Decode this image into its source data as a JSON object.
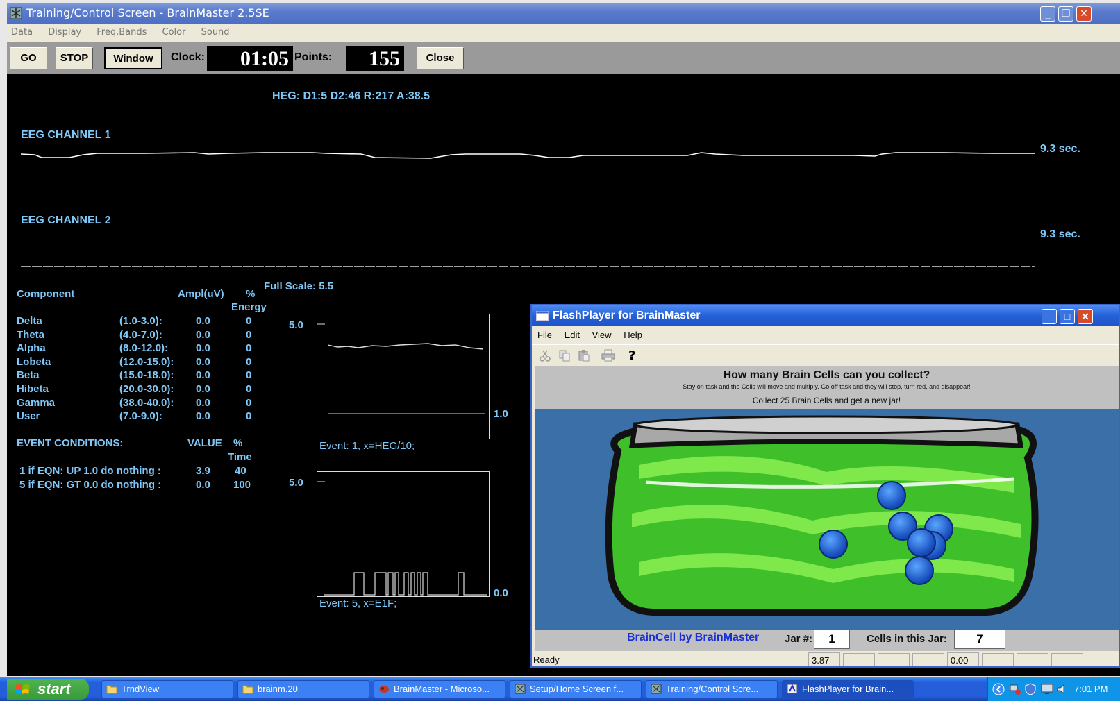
{
  "window": {
    "title": "Training/Control Screen - BrainMaster 2.5SE",
    "menu": [
      "Data",
      "Display",
      "Freq.Bands",
      "Color",
      "Sound"
    ]
  },
  "toolbar": {
    "go_label": "GO",
    "stop_label": "STOP",
    "window_label": "Window",
    "clock_label": "Clock:",
    "clock_value": "01:05",
    "points_label": "Points:",
    "points_value": "155",
    "close_label": "Close"
  },
  "heg_readout": "HEG: D1:5 D2:46 R:217 A:38.5",
  "channels": [
    {
      "label": "EEG CHANNEL 1",
      "duration": "9.3 sec."
    },
    {
      "label": "EEG CHANNEL 2",
      "duration": "9.3 sec."
    }
  ],
  "full_scale": "Full Scale: 5.5",
  "components": {
    "header_component": "Component",
    "header_ampl": "Ampl(uV)",
    "header_pct": "%",
    "header_energy": "Energy",
    "rows": [
      {
        "name": "Delta",
        "range": "(1.0-3.0):",
        "ampl": "0.0",
        "pct": "0"
      },
      {
        "name": "Theta",
        "range": "(4.0-7.0):",
        "ampl": "0.0",
        "pct": "0"
      },
      {
        "name": "Alpha",
        "range": "(8.0-12.0):",
        "ampl": "0.0",
        "pct": "0"
      },
      {
        "name": "Lobeta",
        "range": "(12.0-15.0):",
        "ampl": "0.0",
        "pct": "0"
      },
      {
        "name": "Beta",
        "range": "(15.0-18.0):",
        "ampl": "0.0",
        "pct": "0"
      },
      {
        "name": "Hibeta",
        "range": "(20.0-30.0):",
        "ampl": "0.0",
        "pct": "0"
      },
      {
        "name": "Gamma",
        "range": "(38.0-40.0):",
        "ampl": "0.0",
        "pct": "0"
      },
      {
        "name": "User",
        "range": "(7.0-9.0):",
        "ampl": "0.0",
        "pct": "0"
      }
    ]
  },
  "events": {
    "header": "EVENT CONDITIONS:",
    "header_value": "VALUE",
    "header_pct": "%",
    "header_time": "Time",
    "rows": [
      {
        "condition": "1 if EQN: UP 1.0 do nothing :",
        "value": "3.9",
        "time": "40"
      },
      {
        "condition": "5 if EQN: GT 0.0 do nothing :",
        "value": "0.0",
        "time": "100"
      }
    ]
  },
  "graph1": {
    "top": "5.0",
    "threshold": "1.0",
    "caption": "Event: 1, x=HEG/10;"
  },
  "graph2": {
    "top": "5.0",
    "bottom": "0.0",
    "caption": "Event: 5, x=E1F;"
  },
  "flash": {
    "title": "FlashPlayer for BrainMaster",
    "menu": [
      "File",
      "Edit",
      "View",
      "Help"
    ],
    "heading": "How many Brain Cells can you  collect?",
    "subheading": "Stay on task and the Cells will move and multiply.  Go off task and they will stop, turn red, and disappear!",
    "goal": "Collect 25 Brain Cells and get a new jar!",
    "brand": "BrainCell by BrainMaster",
    "jar_label": "Jar #:",
    "jar_value": "1",
    "cells_label": "Cells in this Jar:",
    "cells_value": "7",
    "status": "Ready",
    "status_v1": "3.87",
    "status_v2": "0.00"
  },
  "taskbar": {
    "start_label": "start",
    "items": [
      "TrndView",
      "brainm.20",
      "BrainMaster - Microso...",
      "Setup/Home Screen f...",
      "Training/Control Scre...",
      "FlashPlayer for Brain..."
    ],
    "clock": "7:01 PM"
  },
  "colors": {
    "screen_bg": "#000000",
    "text_cyan": "#7fc8f8",
    "threshold_green": "#2ecc40",
    "jar_green": "#3fbf2a",
    "cell_blue": "#1f6fd8",
    "brand_blue": "#1a2fd8"
  }
}
